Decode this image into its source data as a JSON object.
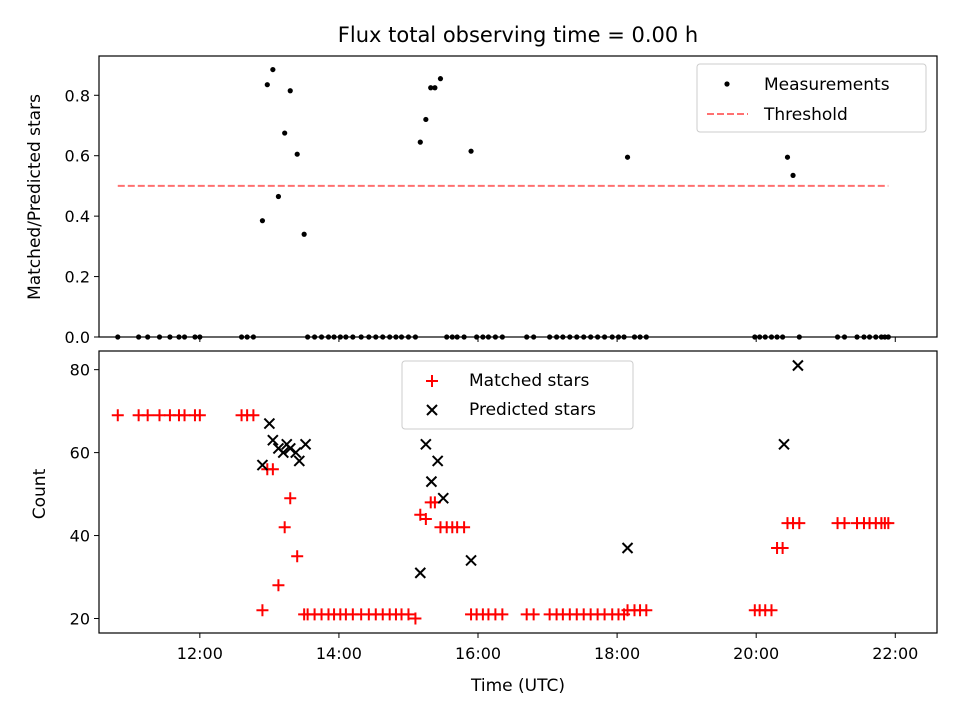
{
  "title": "Flux total observing time = 0.00 h",
  "chart_data": [
    {
      "type": "scatter",
      "ylabel": "Matched/Predicted stars",
      "xlabel": "",
      "xlim": [
        10.55,
        22.6
      ],
      "ylim": [
        0,
        0.93
      ],
      "yticks": [
        "0.0",
        "0.2",
        "0.4",
        "0.6",
        "0.8"
      ],
      "legend": "top-right",
      "series": [
        {
          "name": "Measurements",
          "marker": "dot",
          "color": "#000000",
          "x": [
            10.82,
            11.12,
            11.25,
            11.42,
            11.57,
            11.7,
            11.78,
            11.93,
            12.0,
            12.6,
            12.68,
            12.77,
            12.9,
            12.97,
            13.05,
            13.13,
            13.22,
            13.3,
            13.4,
            13.5,
            13.55,
            13.65,
            13.75,
            13.85,
            13.93,
            14.02,
            14.1,
            14.2,
            14.32,
            14.43,
            14.53,
            14.63,
            14.73,
            14.82,
            14.9,
            15.0,
            15.1,
            15.17,
            15.25,
            15.32,
            15.38,
            15.46,
            15.55,
            15.63,
            15.7,
            15.8,
            15.9,
            15.98,
            16.07,
            16.15,
            16.25,
            16.35,
            16.7,
            16.8,
            17.03,
            17.13,
            17.22,
            17.32,
            17.42,
            17.52,
            17.62,
            17.72,
            17.82,
            17.93,
            18.02,
            18.1,
            18.15,
            18.25,
            18.33,
            18.42,
            19.98,
            20.05,
            20.13,
            20.22,
            20.3,
            20.38,
            20.45,
            20.53,
            20.62,
            21.17,
            21.27,
            21.45,
            21.55,
            21.63,
            21.72,
            21.8,
            21.85,
            21.9
          ],
          "y": [
            0.0,
            0.0,
            0.0,
            0.0,
            0.0,
            0.0,
            0.0,
            0.0,
            0.0,
            0.0,
            0.0,
            0.0,
            0.385,
            0.835,
            0.885,
            0.465,
            0.675,
            0.815,
            0.605,
            0.34,
            0.0,
            0.0,
            0.0,
            0.0,
            0.0,
            0.0,
            0.0,
            0.0,
            0.0,
            0.0,
            0.0,
            0.0,
            0.0,
            0.0,
            0.0,
            0.0,
            0.0,
            0.645,
            0.72,
            0.825,
            0.825,
            0.855,
            0.0,
            0.0,
            0.0,
            0.0,
            0.615,
            0.0,
            0.0,
            0.0,
            0.0,
            0.0,
            0.0,
            0.0,
            0.0,
            0.0,
            0.0,
            0.0,
            0.0,
            0.0,
            0.0,
            0.0,
            0.0,
            0.0,
            0.0,
            0.0,
            0.595,
            0.0,
            0.0,
            0.0,
            0.0,
            0.0,
            0.0,
            0.0,
            0.0,
            0.0,
            0.595,
            0.535,
            0.0,
            0.0,
            0.0,
            0.0,
            0.0,
            0.0,
            0.0,
            0.0,
            0.0,
            0.0
          ]
        },
        {
          "name": "Threshold",
          "style": "dashed",
          "color": "#ff7070",
          "x": [
            10.82,
            21.9
          ],
          "y": [
            0.5,
            0.5
          ]
        }
      ]
    },
    {
      "type": "scatter",
      "ylabel": "Count",
      "xlabel": "Time (UTC)",
      "xlim": [
        10.55,
        22.6
      ],
      "ylim": [
        16.5,
        84.5
      ],
      "yticks": [
        "20",
        "40",
        "60",
        "80"
      ],
      "xticks": [
        "12:00",
        "14:00",
        "16:00",
        "18:00",
        "20:00",
        "22:00"
      ],
      "legend": "top-center",
      "series": [
        {
          "name": "Matched stars",
          "marker": "plus",
          "color": "#ff0000",
          "x": [
            10.82,
            11.12,
            11.25,
            11.42,
            11.57,
            11.7,
            11.78,
            11.93,
            12.0,
            12.6,
            12.68,
            12.77,
            12.9,
            12.97,
            13.05,
            13.13,
            13.22,
            13.3,
            13.4,
            13.5,
            13.55,
            13.65,
            13.75,
            13.85,
            13.93,
            14.02,
            14.1,
            14.2,
            14.32,
            14.43,
            14.53,
            14.63,
            14.73,
            14.82,
            14.9,
            15.0,
            15.1,
            15.17,
            15.25,
            15.32,
            15.38,
            15.46,
            15.55,
            15.63,
            15.7,
            15.8,
            15.9,
            15.98,
            16.07,
            16.15,
            16.25,
            16.35,
            16.7,
            16.8,
            17.03,
            17.13,
            17.22,
            17.32,
            17.42,
            17.52,
            17.62,
            17.72,
            17.82,
            17.93,
            18.02,
            18.1,
            18.15,
            18.25,
            18.33,
            18.42,
            19.98,
            20.05,
            20.13,
            20.22,
            20.3,
            20.38,
            20.45,
            20.53,
            20.62,
            21.17,
            21.27,
            21.45,
            21.55,
            21.63,
            21.72,
            21.8,
            21.85,
            21.9
          ],
          "y": [
            69,
            69,
            69,
            69,
            69,
            69,
            69,
            69,
            69,
            69,
            69,
            69,
            22,
            56,
            56,
            28,
            42,
            49,
            35,
            21,
            21,
            21,
            21,
            21,
            21,
            21,
            21,
            21,
            21,
            21,
            21,
            21,
            21,
            21,
            21,
            21,
            20,
            45,
            44,
            48,
            48,
            42,
            42,
            42,
            42,
            42,
            21,
            21,
            21,
            21,
            21,
            21,
            21,
            21,
            21,
            21,
            21,
            21,
            21,
            21,
            21,
            21,
            21,
            21,
            21,
            21,
            22,
            22,
            22,
            22,
            22,
            22,
            22,
            22,
            37,
            37,
            43,
            43,
            43,
            43,
            43,
            43,
            43,
            43,
            43,
            43,
            43,
            43
          ]
        },
        {
          "name": "Predicted stars",
          "marker": "x",
          "color": "#000000",
          "x": [
            12.9,
            13.0,
            13.05,
            13.13,
            13.2,
            13.25,
            13.3,
            13.38,
            13.43,
            13.52,
            15.17,
            15.25,
            15.33,
            15.42,
            15.5,
            15.9,
            18.15,
            20.4,
            20.6
          ],
          "y": [
            57,
            67,
            63,
            61,
            60,
            62,
            61,
            60,
            58,
            62,
            31,
            62,
            53,
            58,
            49,
            34,
            37,
            62,
            81
          ]
        }
      ]
    }
  ]
}
